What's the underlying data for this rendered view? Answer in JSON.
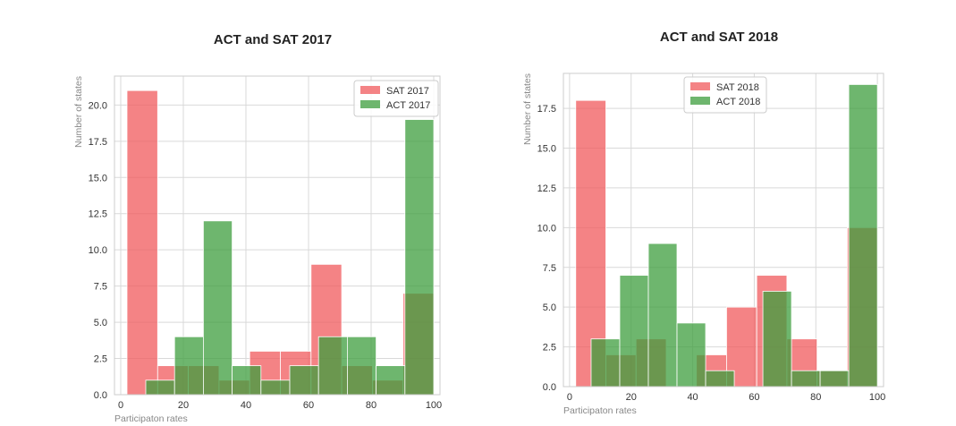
{
  "chart_data": [
    {
      "type": "bar",
      "title": "ACT and SAT 2017",
      "xlabel": "Participaton rates",
      "ylabel": "Number of states",
      "xlim": [
        -2,
        102
      ],
      "ylim": [
        0,
        22
      ],
      "xticks": [
        "0",
        "20",
        "40",
        "60",
        "80",
        "100"
      ],
      "yticks": [
        "0.0",
        "2.5",
        "5.0",
        "7.5",
        "10.0",
        "12.5",
        "15.0",
        "17.5",
        "20.0"
      ],
      "grid": true,
      "legend": "top-right",
      "series": [
        {
          "name": "SAT 2017",
          "color": "#f0595c",
          "bins": [
            2,
            11.8,
            21.6,
            31.4,
            41.2,
            51.0,
            60.8,
            70.6,
            80.4,
            90.2,
            100
          ],
          "values": [
            21,
            2,
            2,
            1,
            3,
            3,
            9,
            2,
            1,
            7
          ]
        },
        {
          "name": "ACT 2017",
          "color": "#3e9e3e",
          "bins": [
            8,
            17.2,
            26.4,
            35.6,
            44.8,
            54.0,
            63.2,
            72.4,
            81.6,
            90.8,
            100
          ],
          "values": [
            1,
            4,
            12,
            2,
            1,
            2,
            4,
            4,
            2,
            19
          ]
        }
      ]
    },
    {
      "type": "bar",
      "title": "ACT and SAT 2018",
      "xlabel": "Participaton rates",
      "ylabel": "Number of states",
      "xlim": [
        -2,
        102
      ],
      "ylim": [
        0,
        19.7
      ],
      "xticks": [
        "0",
        "20",
        "40",
        "60",
        "80",
        "100"
      ],
      "yticks": [
        "0.0",
        "2.5",
        "5.0",
        "7.5",
        "10.0",
        "12.5",
        "15.0",
        "17.5"
      ],
      "grid": true,
      "legend": "top-center",
      "series": [
        {
          "name": "SAT 2018",
          "color": "#f0595c",
          "bins": [
            2,
            11.8,
            21.6,
            31.4,
            41.2,
            51.0,
            60.8,
            70.6,
            80.4,
            90.2,
            100
          ],
          "values": [
            18,
            2,
            3,
            0,
            2,
            5,
            7,
            3,
            1,
            10
          ]
        },
        {
          "name": "ACT 2018",
          "color": "#3e9e3e",
          "bins": [
            7,
            16.3,
            25.6,
            34.9,
            44.2,
            53.5,
            62.8,
            72.1,
            81.4,
            90.7,
            100
          ],
          "values": [
            3,
            7,
            9,
            4,
            1,
            0,
            6,
            1,
            1,
            19
          ]
        }
      ]
    }
  ]
}
